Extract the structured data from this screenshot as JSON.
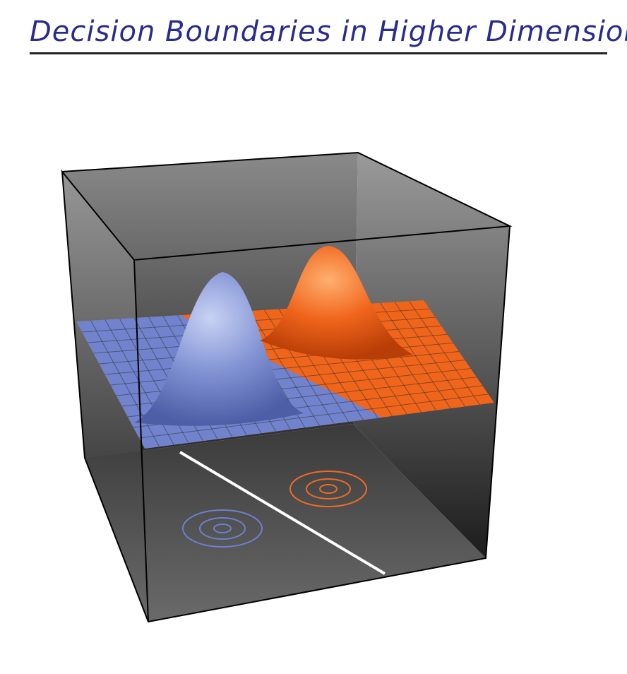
{
  "header": {
    "title": "Decision Boundaries in Higher Dimensions"
  }
}
